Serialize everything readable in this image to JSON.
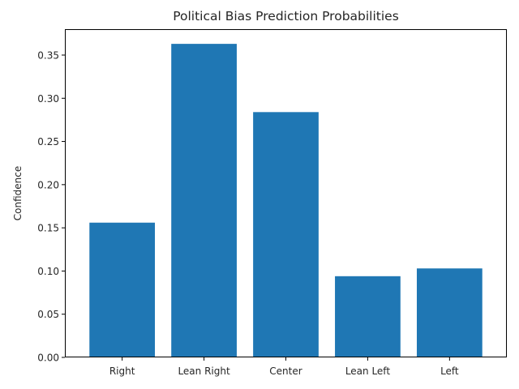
{
  "chart_data": {
    "type": "bar",
    "title": "Political Bias Prediction Probabilities",
    "xlabel": "",
    "ylabel": "Confidence",
    "categories": [
      "Right",
      "Lean Right",
      "Center",
      "Lean Left",
      "Left"
    ],
    "values": [
      0.156,
      0.363,
      0.284,
      0.094,
      0.103
    ],
    "ylim": [
      0,
      0.38
    ],
    "yticks": [
      "0.00",
      "0.05",
      "0.10",
      "0.15",
      "0.20",
      "0.25",
      "0.30",
      "0.35"
    ],
    "bar_color": "#1f77b4",
    "grid": false,
    "legend": false
  }
}
